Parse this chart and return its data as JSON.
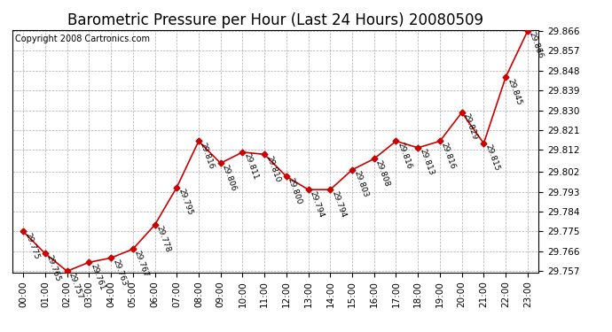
{
  "title": "Barometric Pressure per Hour (Last 24 Hours) 20080509",
  "copyright": "Copyright 2008 Cartronics.com",
  "hours": [
    "00:00",
    "01:00",
    "02:00",
    "03:00",
    "04:00",
    "05:00",
    "06:00",
    "07:00",
    "08:00",
    "09:00",
    "10:00",
    "11:00",
    "12:00",
    "13:00",
    "14:00",
    "15:00",
    "16:00",
    "17:00",
    "18:00",
    "19:00",
    "20:00",
    "21:00",
    "22:00",
    "23:00"
  ],
  "values": [
    29.775,
    29.765,
    29.757,
    29.761,
    29.763,
    29.767,
    29.778,
    29.795,
    29.816,
    29.806,
    29.811,
    29.81,
    29.8,
    29.794,
    29.794,
    29.803,
    29.808,
    29.816,
    29.813,
    29.816,
    29.829,
    29.815,
    29.845,
    29.866
  ],
  "ylim_min": 29.757,
  "ylim_max": 29.866,
  "yticks": [
    29.757,
    29.766,
    29.775,
    29.784,
    29.793,
    29.802,
    29.812,
    29.821,
    29.83,
    29.839,
    29.848,
    29.857,
    29.866
  ],
  "line_color": "#cc0000",
  "marker_color": "#cc0000",
  "bg_color": "#ffffff",
  "grid_color": "#aaaaaa",
  "title_fontsize": 12,
  "annotation_fontsize": 6.5,
  "copyright_fontsize": 7,
  "tick_fontsize": 7.5,
  "ytick_fontsize": 7.5
}
